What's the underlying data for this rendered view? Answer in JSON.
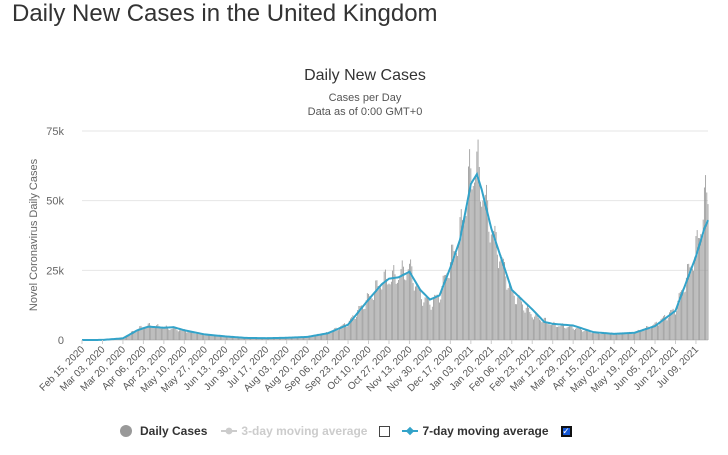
{
  "page": {
    "heading": "Daily New Cases in the United Kingdom"
  },
  "legend": {
    "daily_cases": "Daily Cases",
    "three_day": "3-day moving average",
    "seven_day": "7-day moving average",
    "three_day_checked": false,
    "seven_day_checked": true,
    "check_glyph": "✓"
  },
  "colors": {
    "bars": "#999999",
    "seven_day": "#33a3c9",
    "three_day": "#cccccc",
    "grid": "#e6e6e6"
  },
  "chart_data": {
    "type": "bar",
    "title": "Daily New Cases",
    "subtitle": "Cases per Day",
    "subtitle2": "Data as of 0:00 GMT+0",
    "ylabel": "Novel Coronavirus Daily Cases",
    "xlabel": "",
    "ylim": [
      0,
      75000
    ],
    "yticks": [
      0,
      25000,
      50000,
      75000
    ],
    "ytick_labels": [
      "0",
      "25k",
      "50k",
      "75k"
    ],
    "grid": true,
    "legend_position": "bottom",
    "x_start": "Feb 15, 2020",
    "x_end": "Jul 19, 2021",
    "xtick_labels": [
      "Feb 15, 2020",
      "Mar 03, 2020",
      "Mar 20, 2020",
      "Apr 06, 2020",
      "Apr 23, 2020",
      "May 10, 2020",
      "May 27, 2020",
      "Jun 13, 2020",
      "Jun 30, 2020",
      "Jul 17, 2020",
      "Aug 03, 2020",
      "Aug 20, 2020",
      "Sep 06, 2020",
      "Sep 23, 2020",
      "Oct 10, 2020",
      "Oct 27, 2020",
      "Nov 13, 2020",
      "Nov 30, 2020",
      "Dec 17, 2020",
      "Jan 03, 2021",
      "Jan 20, 2021",
      "Feb 06, 2021",
      "Feb 23, 2021",
      "Mar 12, 2021",
      "Mar 29, 2021",
      "Apr 15, 2021",
      "May 02, 2021",
      "May 19, 2021",
      "Jun 05, 2021",
      "Jun 22, 2021",
      "Jul 09, 2021"
    ],
    "series": [
      {
        "name": "Daily Cases",
        "kind": "bar",
        "points": [
          [
            "Feb 15, 2020",
            0
          ],
          [
            "Mar 03, 2020",
            50
          ],
          [
            "Mar 20, 2020",
            700
          ],
          [
            "Apr 01, 2020",
            4000
          ],
          [
            "Apr 10, 2020",
            5200
          ],
          [
            "Apr 23, 2020",
            4500
          ],
          [
            "May 10, 2020",
            3500
          ],
          [
            "May 27, 2020",
            2000
          ],
          [
            "Jun 13, 2020",
            1200
          ],
          [
            "Jun 30, 2020",
            800
          ],
          [
            "Jul 17, 2020",
            600
          ],
          [
            "Aug 03, 2020",
            800
          ],
          [
            "Aug 20, 2020",
            1100
          ],
          [
            "Sep 06, 2020",
            2500
          ],
          [
            "Sep 23, 2020",
            6000
          ],
          [
            "Oct 10, 2020",
            15000
          ],
          [
            "Oct 21, 2020",
            21000
          ],
          [
            "Oct 27, 2020",
            22000
          ],
          [
            "Nov 04, 2020",
            23000
          ],
          [
            "Nov 13, 2020",
            26000
          ],
          [
            "Nov 22, 2020",
            16000
          ],
          [
            "Nov 30, 2020",
            13000
          ],
          [
            "Dec 08, 2020",
            16000
          ],
          [
            "Dec 17, 2020",
            28000
          ],
          [
            "Dec 25, 2020",
            38000
          ],
          [
            "Jan 03, 2021",
            60000
          ],
          [
            "Jan 08, 2021",
            62000
          ],
          [
            "Jan 20, 2021",
            40000
          ],
          [
            "Feb 06, 2021",
            17000
          ],
          [
            "Feb 23, 2021",
            9000
          ],
          [
            "Mar 12, 2021",
            5500
          ],
          [
            "Mar 29, 2021",
            4500
          ],
          [
            "Apr 15, 2021",
            2800
          ],
          [
            "May 02, 2021",
            2200
          ],
          [
            "May 19, 2021",
            2500
          ],
          [
            "Jun 05, 2021",
            5500
          ],
          [
            "Jun 22, 2021",
            11000
          ],
          [
            "Jul 09, 2021",
            32000
          ],
          [
            "Jul 16, 2021",
            48000
          ],
          [
            "Jul 19, 2021",
            54000
          ]
        ]
      },
      {
        "name": "7-day moving average",
        "kind": "line",
        "points": [
          [
            "Feb 15, 2020",
            0
          ],
          [
            "Mar 03, 2020",
            30
          ],
          [
            "Mar 20, 2020",
            600
          ],
          [
            "Apr 01, 2020",
            3500
          ],
          [
            "Apr 10, 2020",
            4800
          ],
          [
            "Apr 23, 2020",
            4400
          ],
          [
            "May 01, 2020",
            4600
          ],
          [
            "May 10, 2020",
            3500
          ],
          [
            "May 27, 2020",
            2000
          ],
          [
            "Jun 13, 2020",
            1300
          ],
          [
            "Jun 30, 2020",
            750
          ],
          [
            "Jul 17, 2020",
            650
          ],
          [
            "Aug 03, 2020",
            800
          ],
          [
            "Aug 20, 2020",
            1100
          ],
          [
            "Sep 06, 2020",
            2400
          ],
          [
            "Sep 23, 2020",
            5500
          ],
          [
            "Oct 10, 2020",
            14500
          ],
          [
            "Oct 21, 2020",
            20000
          ],
          [
            "Oct 27, 2020",
            22000
          ],
          [
            "Nov 04, 2020",
            22500
          ],
          [
            "Nov 13, 2020",
            24500
          ],
          [
            "Nov 22, 2020",
            18000
          ],
          [
            "Nov 30, 2020",
            14500
          ],
          [
            "Dec 08, 2020",
            16000
          ],
          [
            "Dec 17, 2020",
            26000
          ],
          [
            "Dec 25, 2020",
            36000
          ],
          [
            "Jan 03, 2021",
            56000
          ],
          [
            "Jan 08, 2021",
            59500
          ],
          [
            "Jan 12, 2021",
            54000
          ],
          [
            "Jan 20, 2021",
            40000
          ],
          [
            "Feb 06, 2021",
            18000
          ],
          [
            "Feb 23, 2021",
            11000
          ],
          [
            "Mar 05, 2021",
            6500
          ],
          [
            "Mar 12, 2021",
            5800
          ],
          [
            "Mar 29, 2021",
            5200
          ],
          [
            "Apr 15, 2021",
            2800
          ],
          [
            "May 02, 2021",
            2200
          ],
          [
            "May 19, 2021",
            2600
          ],
          [
            "Jun 05, 2021",
            5000
          ],
          [
            "Jun 22, 2021",
            10500
          ],
          [
            "Jul 09, 2021",
            30000
          ],
          [
            "Jul 16, 2021",
            40000
          ],
          [
            "Jul 19, 2021",
            43000
          ]
        ]
      }
    ]
  }
}
